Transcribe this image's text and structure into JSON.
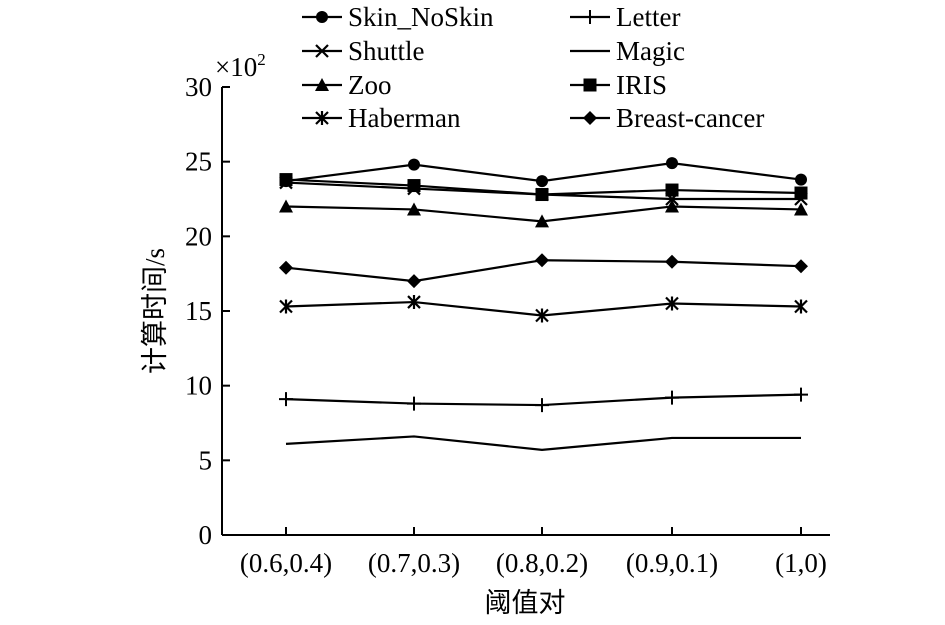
{
  "chart_data": {
    "type": "line",
    "title": "",
    "xlabel": "阈值对",
    "ylabel": "计算时间/s",
    "y_multiplier_label": "×10",
    "y_multiplier_exp": "2",
    "categories": [
      "(0.6,0.4)",
      "(0.7,0.3)",
      "(0.8,0.2)",
      "(0.9,0.1)",
      "(1,0)"
    ],
    "ylim": [
      0,
      30
    ],
    "yticks": [
      "0",
      "5",
      "10",
      "15",
      "20",
      "25",
      "30"
    ],
    "legend_position": "top",
    "series": [
      {
        "name": "Skin_NoSkin",
        "marker": "circle",
        "values": [
          23.7,
          24.8,
          23.7,
          24.9,
          23.8
        ]
      },
      {
        "name": "Shuttle",
        "marker": "x",
        "values": [
          23.6,
          23.2,
          22.8,
          22.5,
          22.5
        ]
      },
      {
        "name": "Zoo",
        "marker": "triangle",
        "values": [
          22.0,
          21.8,
          21.0,
          22.0,
          21.8
        ]
      },
      {
        "name": "Haberman",
        "marker": "asterisk",
        "values": [
          15.3,
          15.6,
          14.7,
          15.5,
          15.3
        ]
      },
      {
        "name": "Letter",
        "marker": "plus",
        "values": [
          9.1,
          8.8,
          8.7,
          9.2,
          9.4
        ]
      },
      {
        "name": "Magic",
        "marker": "none",
        "values": [
          6.1,
          6.6,
          5.7,
          6.5,
          6.5
        ]
      },
      {
        "name": "IRIS",
        "marker": "square",
        "values": [
          23.8,
          23.4,
          22.8,
          23.1,
          22.9
        ]
      },
      {
        "name": "Breast-cancer",
        "marker": "diamond",
        "values": [
          17.9,
          17.0,
          18.4,
          18.3,
          18.0
        ]
      }
    ]
  }
}
